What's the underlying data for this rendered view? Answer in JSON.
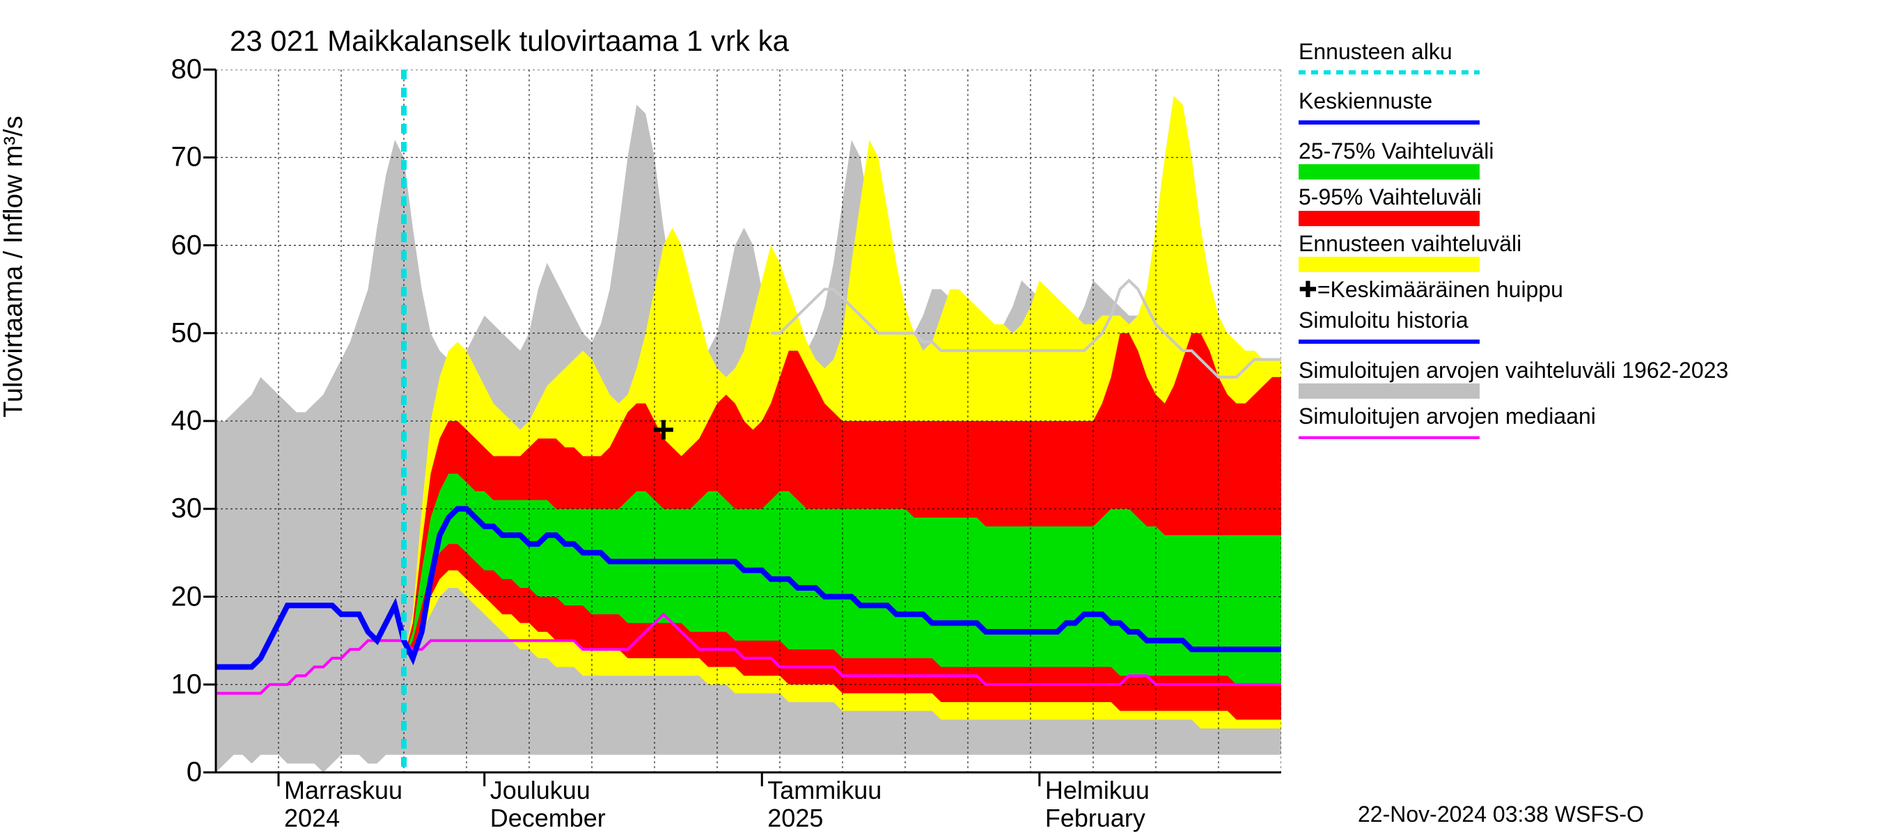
{
  "title": "23 021 Maikkalanselk tulovirtaama 1 vrk ka",
  "y_axis_label": "Tulovirtaama / Inflow   m³/s",
  "footer": "22-Nov-2024 03:38 WSFS-O",
  "chart": {
    "type": "area-line-forecast",
    "ylim": [
      0,
      80
    ],
    "yticks": [
      0,
      10,
      20,
      30,
      40,
      50,
      60,
      70,
      80
    ],
    "x_domain_days": 120,
    "forecast_start_day": 21,
    "x_ticks": [
      {
        "day": 0,
        "label_fi": "Marraskuu",
        "label_en": "2024",
        "pos": 7
      },
      {
        "day": 30,
        "label_fi": "Joulukuu",
        "label_en": "December",
        "pos": 30
      },
      {
        "day": 61,
        "label_fi": "Tammikuu",
        "label_en": "2025",
        "pos": 61
      },
      {
        "day": 92,
        "label_fi": "Helmikuu",
        "label_en": "February",
        "pos": 92
      }
    ],
    "grid_color": "#000000",
    "grid_dash": "3,4",
    "background_color": "#ffffff",
    "colors": {
      "historical_range": "#c0c0c0",
      "yellow_band": "#ffff00",
      "red_band": "#ff0000",
      "green_band": "#00e000",
      "blue_line": "#0000ff",
      "magenta_line": "#ff00ff",
      "cyan_line": "#00e0e0",
      "lightgrey_line": "#c8c8c8",
      "black": "#000000"
    },
    "peak_marker": {
      "day": 50,
      "value": 39
    },
    "historical_upper": [
      40,
      40,
      41,
      42,
      43,
      45,
      44,
      43,
      42,
      41,
      41,
      42,
      43,
      45,
      47,
      49,
      52,
      55,
      62,
      68,
      72,
      70,
      62,
      55,
      50,
      48,
      47,
      46,
      48,
      50,
      52,
      51,
      50,
      49,
      48,
      50,
      55,
      58,
      56,
      54,
      52,
      50,
      49,
      51,
      55,
      62,
      70,
      76,
      75,
      70,
      62,
      56,
      52,
      50,
      49,
      48,
      50,
      55,
      60,
      62,
      60,
      55,
      52,
      50,
      49,
      48,
      48,
      50,
      53,
      58,
      65,
      72,
      70,
      64,
      58,
      54,
      52,
      51,
      50,
      52,
      55,
      55,
      54,
      53,
      52,
      51,
      51,
      50,
      51,
      53,
      56,
      55,
      54,
      53,
      52,
      51,
      51,
      53,
      56,
      55,
      54,
      53,
      52,
      52,
      55,
      62,
      70,
      77,
      76,
      70,
      62,
      56,
      52,
      50,
      49,
      48,
      48,
      47,
      47,
      47
    ],
    "historical_lower": [
      0,
      1,
      2,
      2,
      1,
      2,
      2,
      2,
      1,
      1,
      1,
      1,
      0,
      1,
      2,
      2,
      2,
      1,
      1,
      2,
      2,
      2,
      2,
      2,
      2,
      2,
      2,
      2,
      2,
      2,
      2,
      2,
      2,
      2,
      2,
      2,
      2,
      2,
      2,
      2,
      2,
      2,
      2,
      2,
      2,
      2,
      2,
      2,
      2,
      2,
      2,
      2,
      2,
      2,
      2,
      2,
      2,
      2,
      2,
      2,
      2,
      2,
      2,
      2,
      2,
      2,
      2,
      2,
      2,
      2,
      2,
      2,
      2,
      2,
      2,
      2,
      2,
      2,
      2,
      2,
      2,
      2,
      2,
      2,
      2,
      2,
      2,
      2,
      2,
      2,
      2,
      2,
      2,
      2,
      2,
      2,
      2,
      2,
      2,
      2,
      2,
      2,
      2,
      2,
      2,
      2,
      2,
      2,
      2,
      2,
      2,
      2,
      2,
      2,
      2,
      2,
      2,
      2,
      2,
      2
    ],
    "yellow_upper": [
      null,
      null,
      null,
      null,
      null,
      null,
      null,
      null,
      null,
      null,
      null,
      null,
      null,
      null,
      null,
      null,
      null,
      null,
      null,
      null,
      null,
      13,
      18,
      30,
      40,
      45,
      48,
      49,
      48,
      46,
      44,
      42,
      41,
      40,
      39,
      40,
      42,
      44,
      45,
      46,
      47,
      48,
      47,
      45,
      43,
      42,
      43,
      46,
      50,
      55,
      60,
      62,
      60,
      56,
      52,
      48,
      46,
      45,
      46,
      48,
      52,
      56,
      60,
      58,
      55,
      52,
      49,
      47,
      46,
      47,
      50,
      58,
      65,
      72,
      70,
      64,
      58,
      53,
      50,
      48,
      49,
      52,
      55,
      55,
      54,
      53,
      52,
      51,
      51,
      50,
      51,
      53,
      56,
      55,
      54,
      53,
      52,
      51,
      51,
      52,
      52,
      52,
      51,
      52,
      55,
      62,
      70,
      77,
      76,
      70,
      62,
      56,
      52,
      50,
      49,
      48,
      48,
      47,
      47,
      47
    ],
    "yellow_lower": [
      null,
      null,
      null,
      null,
      null,
      null,
      null,
      null,
      null,
      null,
      null,
      null,
      null,
      null,
      null,
      null,
      null,
      null,
      null,
      null,
      null,
      13,
      14,
      16,
      18,
      20,
      21,
      21,
      20,
      19,
      18,
      17,
      16,
      15,
      14,
      14,
      13,
      13,
      12,
      12,
      12,
      11,
      11,
      11,
      11,
      11,
      11,
      11,
      11,
      11,
      11,
      11,
      11,
      11,
      11,
      10,
      10,
      10,
      9,
      9,
      9,
      9,
      9,
      9,
      8,
      8,
      8,
      8,
      8,
      8,
      7,
      7,
      7,
      7,
      7,
      7,
      7,
      7,
      7,
      7,
      7,
      6,
      6,
      6,
      6,
      6,
      6,
      6,
      6,
      6,
      6,
      6,
      6,
      6,
      6,
      6,
      6,
      6,
      6,
      6,
      6,
      6,
      6,
      6,
      6,
      6,
      6,
      6,
      6,
      6,
      5,
      5,
      5,
      5,
      5,
      5,
      5,
      5,
      5,
      5
    ],
    "red_upper": [
      null,
      null,
      null,
      null,
      null,
      null,
      null,
      null,
      null,
      null,
      null,
      null,
      null,
      null,
      null,
      null,
      null,
      null,
      null,
      null,
      null,
      13,
      17,
      26,
      34,
      38,
      40,
      40,
      39,
      38,
      37,
      36,
      36,
      36,
      36,
      37,
      38,
      38,
      38,
      37,
      37,
      36,
      36,
      36,
      37,
      39,
      41,
      42,
      42,
      40,
      38,
      37,
      36,
      37,
      38,
      40,
      42,
      43,
      42,
      40,
      39,
      40,
      42,
      45,
      48,
      48,
      46,
      44,
      42,
      41,
      40,
      40,
      40,
      40,
      40,
      40,
      40,
      40,
      40,
      40,
      40,
      40,
      40,
      40,
      40,
      40,
      40,
      40,
      40,
      40,
      40,
      40,
      40,
      40,
      40,
      40,
      40,
      40,
      40,
      42,
      45,
      50,
      50,
      48,
      45,
      43,
      42,
      44,
      47,
      50,
      50,
      48,
      45,
      43,
      42,
      42,
      43,
      44,
      45,
      45
    ],
    "red_lower": [
      null,
      null,
      null,
      null,
      null,
      null,
      null,
      null,
      null,
      null,
      null,
      null,
      null,
      null,
      null,
      null,
      null,
      null,
      null,
      null,
      null,
      13,
      14,
      17,
      20,
      22,
      23,
      23,
      22,
      21,
      20,
      19,
      18,
      18,
      17,
      17,
      16,
      16,
      15,
      15,
      15,
      14,
      14,
      14,
      14,
      14,
      13,
      13,
      13,
      13,
      13,
      13,
      13,
      13,
      13,
      12,
      12,
      12,
      12,
      11,
      11,
      11,
      11,
      11,
      10,
      10,
      10,
      10,
      10,
      10,
      9,
      9,
      9,
      9,
      9,
      9,
      9,
      9,
      9,
      9,
      9,
      8,
      8,
      8,
      8,
      8,
      8,
      8,
      8,
      8,
      8,
      8,
      8,
      8,
      8,
      8,
      8,
      8,
      8,
      8,
      8,
      7,
      7,
      7,
      7,
      7,
      7,
      7,
      7,
      7,
      7,
      7,
      7,
      7,
      6,
      6,
      6,
      6,
      6,
      6
    ],
    "green_upper": [
      null,
      null,
      null,
      null,
      null,
      null,
      null,
      null,
      null,
      null,
      null,
      null,
      null,
      null,
      null,
      null,
      null,
      null,
      null,
      null,
      null,
      13,
      16,
      23,
      29,
      32,
      34,
      34,
      33,
      32,
      32,
      31,
      31,
      31,
      31,
      31,
      31,
      31,
      30,
      30,
      30,
      30,
      30,
      30,
      30,
      30,
      31,
      32,
      32,
      31,
      30,
      30,
      30,
      30,
      31,
      32,
      32,
      31,
      30,
      30,
      30,
      30,
      31,
      32,
      32,
      31,
      30,
      30,
      30,
      30,
      30,
      30,
      30,
      30,
      30,
      30,
      30,
      30,
      29,
      29,
      29,
      29,
      29,
      29,
      29,
      29,
      28,
      28,
      28,
      28,
      28,
      28,
      28,
      28,
      28,
      28,
      28,
      28,
      28,
      29,
      30,
      30,
      30,
      29,
      28,
      28,
      27,
      27,
      27,
      27,
      27,
      27,
      27,
      27,
      27,
      27,
      27,
      27,
      27,
      27
    ],
    "green_lower": [
      null,
      null,
      null,
      null,
      null,
      null,
      null,
      null,
      null,
      null,
      null,
      null,
      null,
      null,
      null,
      null,
      null,
      null,
      null,
      null,
      null,
      13,
      15,
      19,
      23,
      25,
      26,
      26,
      25,
      24,
      23,
      23,
      22,
      22,
      21,
      21,
      20,
      20,
      20,
      19,
      19,
      19,
      18,
      18,
      18,
      18,
      17,
      17,
      17,
      17,
      17,
      17,
      17,
      16,
      16,
      16,
      16,
      16,
      15,
      15,
      15,
      15,
      15,
      15,
      14,
      14,
      14,
      14,
      14,
      14,
      13,
      13,
      13,
      13,
      13,
      13,
      13,
      13,
      13,
      13,
      13,
      12,
      12,
      12,
      12,
      12,
      12,
      12,
      12,
      12,
      12,
      12,
      12,
      12,
      12,
      12,
      12,
      12,
      12,
      12,
      12,
      11,
      11,
      11,
      11,
      11,
      11,
      11,
      11,
      11,
      11,
      11,
      11,
      11,
      10,
      10,
      10,
      10,
      10,
      10
    ],
    "blue_line": [
      12,
      12,
      12,
      12,
      12,
      13,
      15,
      17,
      19,
      19,
      19,
      19,
      19,
      19,
      18,
      18,
      18,
      16,
      15,
      17,
      19,
      15,
      13,
      16,
      22,
      27,
      29,
      30,
      30,
      29,
      28,
      28,
      27,
      27,
      27,
      26,
      26,
      27,
      27,
      26,
      26,
      25,
      25,
      25,
      24,
      24,
      24,
      24,
      24,
      24,
      24,
      24,
      24,
      24,
      24,
      24,
      24,
      24,
      24,
      23,
      23,
      23,
      22,
      22,
      22,
      21,
      21,
      21,
      20,
      20,
      20,
      20,
      19,
      19,
      19,
      19,
      18,
      18,
      18,
      18,
      17,
      17,
      17,
      17,
      17,
      17,
      16,
      16,
      16,
      16,
      16,
      16,
      16,
      16,
      16,
      17,
      17,
      18,
      18,
      18,
      17,
      17,
      16,
      16,
      15,
      15,
      15,
      15,
      15,
      14,
      14,
      14,
      14,
      14,
      14,
      14,
      14,
      14,
      14,
      14
    ],
    "magenta_line": [
      9,
      9,
      9,
      9,
      9,
      9,
      10,
      10,
      10,
      11,
      11,
      12,
      12,
      13,
      13,
      14,
      14,
      15,
      15,
      15,
      15,
      15,
      14,
      14,
      15,
      15,
      15,
      15,
      15,
      15,
      15,
      15,
      15,
      15,
      15,
      15,
      15,
      15,
      15,
      15,
      15,
      14,
      14,
      14,
      14,
      14,
      14,
      15,
      16,
      17,
      18,
      17,
      16,
      15,
      14,
      14,
      14,
      14,
      14,
      13,
      13,
      13,
      13,
      12,
      12,
      12,
      12,
      12,
      12,
      12,
      11,
      11,
      11,
      11,
      11,
      11,
      11,
      11,
      11,
      11,
      11,
      11,
      11,
      11,
      11,
      11,
      10,
      10,
      10,
      10,
      10,
      10,
      10,
      10,
      10,
      10,
      10,
      10,
      10,
      10,
      10,
      10,
      11,
      11,
      11,
      10,
      10,
      10,
      10,
      10,
      10,
      10,
      10,
      10,
      10,
      10,
      10,
      10,
      10,
      10
    ],
    "light_upper_line": [
      null,
      null,
      null,
      null,
      null,
      null,
      null,
      null,
      null,
      null,
      null,
      null,
      null,
      null,
      null,
      null,
      null,
      null,
      null,
      null,
      null,
      null,
      null,
      null,
      null,
      null,
      null,
      null,
      null,
      null,
      null,
      null,
      null,
      null,
      null,
      null,
      null,
      null,
      null,
      null,
      null,
      null,
      null,
      null,
      null,
      null,
      null,
      null,
      null,
      null,
      null,
      null,
      null,
      null,
      null,
      null,
      null,
      null,
      null,
      null,
      null,
      null,
      50,
      50,
      51,
      52,
      53,
      54,
      55,
      55,
      54,
      53,
      52,
      51,
      50,
      50,
      50,
      50,
      50,
      49,
      49,
      48,
      48,
      48,
      48,
      48,
      48,
      48,
      48,
      48,
      48,
      48,
      48,
      48,
      48,
      48,
      48,
      48,
      49,
      50,
      52,
      55,
      56,
      55,
      53,
      51,
      50,
      49,
      48,
      48,
      47,
      46,
      45,
      45,
      45,
      46,
      47,
      47,
      47,
      47
    ]
  },
  "legend": [
    {
      "text": "Ennusteen alku",
      "type": "dashed-line",
      "color": "#00e0e0",
      "width": 6,
      "dash": "10,8"
    },
    {
      "text": "Keskiennuste",
      "type": "line",
      "color": "#0000ff",
      "width": 6
    },
    {
      "text": "25-75% Vaihteluväli",
      "type": "swatch",
      "color": "#00e000"
    },
    {
      "text": "5-95% Vaihteluväli",
      "type": "swatch",
      "color": "#ff0000"
    },
    {
      "text": "Ennusteen vaihteluväli",
      "type": "swatch",
      "color": "#ffff00"
    },
    {
      "text": "✚=Keskimääräinen huippu",
      "type": "text-only"
    },
    {
      "text": "Simuloitu historia",
      "type": "line",
      "color": "#0000ff",
      "width": 6
    },
    {
      "text": "Simuloitujen arvojen vaihteluväli 1962-2023",
      "type": "swatch",
      "color": "#c0c0c0"
    },
    {
      "text": "Simuloitujen arvojen mediaani",
      "type": "line",
      "color": "#ff00ff",
      "width": 4
    }
  ]
}
